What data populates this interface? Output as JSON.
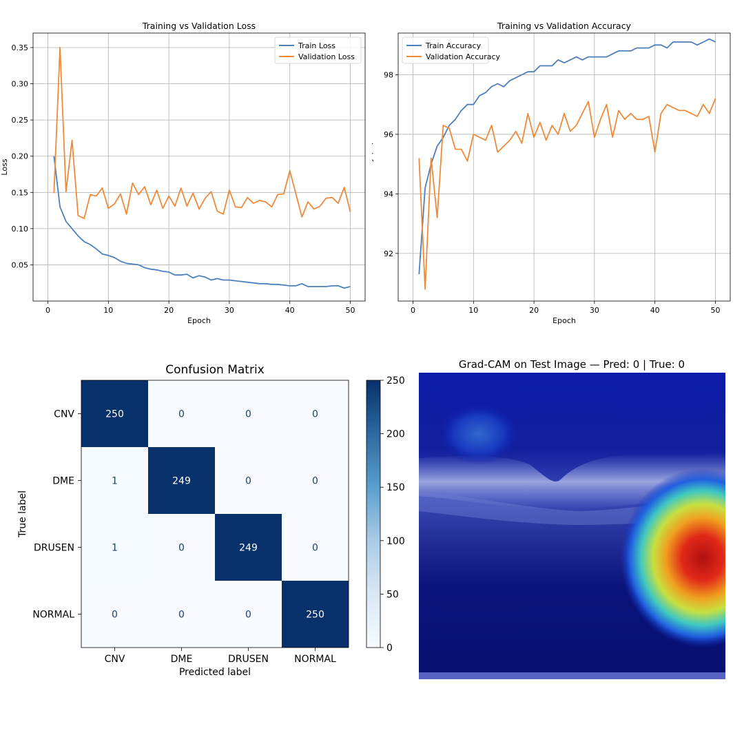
{
  "chart_data": [
    {
      "type": "line",
      "title": "Training vs Validation Loss",
      "xlabel": "Epoch",
      "ylabel": "Loss",
      "xlim": [
        -2.45,
        52.45
      ],
      "ylim": [
        0.0,
        0.37
      ],
      "xticks": [
        0,
        10,
        20,
        30,
        40,
        50
      ],
      "yticks": [
        0.05,
        0.1,
        0.15,
        0.2,
        0.25,
        0.3,
        0.35
      ],
      "ytick_labels": [
        "0.05",
        "0.10",
        "0.15",
        "0.20",
        "0.25",
        "0.30",
        "0.35"
      ],
      "grid": true,
      "legend": "top-right",
      "x": [
        1,
        2,
        3,
        4,
        5,
        6,
        7,
        8,
        9,
        10,
        11,
        12,
        13,
        14,
        15,
        16,
        17,
        18,
        19,
        20,
        21,
        22,
        23,
        24,
        25,
        26,
        27,
        28,
        29,
        30,
        31,
        32,
        33,
        34,
        35,
        36,
        37,
        38,
        39,
        40,
        41,
        42,
        43,
        44,
        45,
        46,
        47,
        48,
        49,
        50
      ],
      "series": [
        {
          "name": "Train Loss",
          "color": "#4c7fbb",
          "values": [
            0.2,
            0.13,
            0.11,
            0.1,
            0.09,
            0.082,
            0.078,
            0.072,
            0.065,
            0.063,
            0.06,
            0.055,
            0.052,
            0.051,
            0.05,
            0.046,
            0.044,
            0.043,
            0.041,
            0.04,
            0.036,
            0.036,
            0.037,
            0.032,
            0.035,
            0.033,
            0.029,
            0.031,
            0.029,
            0.029,
            0.028,
            0.027,
            0.026,
            0.025,
            0.024,
            0.024,
            0.023,
            0.023,
            0.022,
            0.021,
            0.021,
            0.024,
            0.02,
            0.02,
            0.02,
            0.02,
            0.021,
            0.021,
            0.018,
            0.02
          ]
        },
        {
          "name": "Validation Loss",
          "color": "#ee8a3a",
          "values": [
            0.149,
            0.35,
            0.151,
            0.222,
            0.118,
            0.114,
            0.147,
            0.145,
            0.156,
            0.128,
            0.134,
            0.148,
            0.12,
            0.163,
            0.147,
            0.158,
            0.133,
            0.153,
            0.128,
            0.145,
            0.131,
            0.156,
            0.131,
            0.149,
            0.127,
            0.142,
            0.151,
            0.124,
            0.12,
            0.153,
            0.13,
            0.129,
            0.143,
            0.135,
            0.139,
            0.137,
            0.13,
            0.147,
            0.148,
            0.18,
            0.148,
            0.116,
            0.137,
            0.127,
            0.131,
            0.142,
            0.143,
            0.135,
            0.157,
            0.123
          ]
        }
      ]
    },
    {
      "type": "line",
      "title": "Training vs Validation Accuracy",
      "xlabel": "Epoch",
      "ylabel": "Accuracy (%)",
      "xlim": [
        -2.45,
        52.45
      ],
      "ylim": [
        90.4,
        99.4
      ],
      "xticks": [
        0,
        10,
        20,
        30,
        40,
        50
      ],
      "yticks": [
        92,
        94,
        96,
        98
      ],
      "ytick_labels": [
        "92",
        "94",
        "96",
        "98"
      ],
      "grid": true,
      "legend": "top-left",
      "x": [
        1,
        2,
        3,
        4,
        5,
        6,
        7,
        8,
        9,
        10,
        11,
        12,
        13,
        14,
        15,
        16,
        17,
        18,
        19,
        20,
        21,
        22,
        23,
        24,
        25,
        26,
        27,
        28,
        29,
        30,
        31,
        32,
        33,
        34,
        35,
        36,
        37,
        38,
        39,
        40,
        41,
        42,
        43,
        44,
        45,
        46,
        47,
        48,
        49,
        50
      ],
      "series": [
        {
          "name": "Train Accuracy",
          "color": "#4c7fbb",
          "values": [
            91.3,
            94.2,
            95.0,
            95.6,
            95.9,
            96.3,
            96.5,
            96.8,
            97.0,
            97.0,
            97.3,
            97.4,
            97.6,
            97.7,
            97.6,
            97.8,
            97.9,
            98.0,
            98.1,
            98.1,
            98.3,
            98.3,
            98.3,
            98.5,
            98.4,
            98.5,
            98.6,
            98.5,
            98.6,
            98.6,
            98.6,
            98.6,
            98.7,
            98.8,
            98.8,
            98.8,
            98.9,
            98.9,
            98.9,
            99.0,
            99.0,
            98.9,
            99.1,
            99.1,
            99.1,
            99.1,
            99.0,
            99.1,
            99.2,
            99.1
          ]
        },
        {
          "name": "Validation Accuracy",
          "color": "#ee8a3a",
          "values": [
            95.2,
            90.8,
            95.2,
            93.2,
            96.3,
            96.2,
            95.5,
            95.5,
            95.1,
            96.0,
            95.9,
            95.8,
            96.3,
            95.4,
            95.6,
            95.8,
            96.1,
            95.7,
            96.7,
            95.9,
            96.4,
            95.8,
            96.3,
            96.0,
            96.7,
            96.1,
            96.3,
            96.7,
            97.1,
            95.9,
            96.5,
            97.0,
            95.9,
            96.8,
            96.5,
            96.7,
            96.5,
            96.5,
            96.6,
            95.4,
            96.7,
            97.0,
            96.9,
            96.8,
            96.8,
            96.7,
            96.6,
            97.0,
            96.7,
            97.2
          ]
        }
      ]
    },
    {
      "type": "heatmap",
      "title": "Confusion Matrix",
      "xlabel": "Predicted label",
      "ylabel": "True label",
      "categories": [
        "CNV",
        "DME",
        "DRUSEN",
        "NORMAL"
      ],
      "matrix": [
        [
          250,
          0,
          0,
          0
        ],
        [
          1,
          249,
          0,
          0
        ],
        [
          1,
          0,
          249,
          0
        ],
        [
          0,
          0,
          0,
          250
        ]
      ],
      "colorbar": {
        "min": 0,
        "max": 250,
        "ticks": [
          0,
          50,
          100,
          150,
          200,
          250
        ]
      },
      "colormap": "Blues"
    }
  ],
  "gradcam": {
    "title": "Grad-CAM on Test Image — Pred: 0 | True: 0"
  }
}
